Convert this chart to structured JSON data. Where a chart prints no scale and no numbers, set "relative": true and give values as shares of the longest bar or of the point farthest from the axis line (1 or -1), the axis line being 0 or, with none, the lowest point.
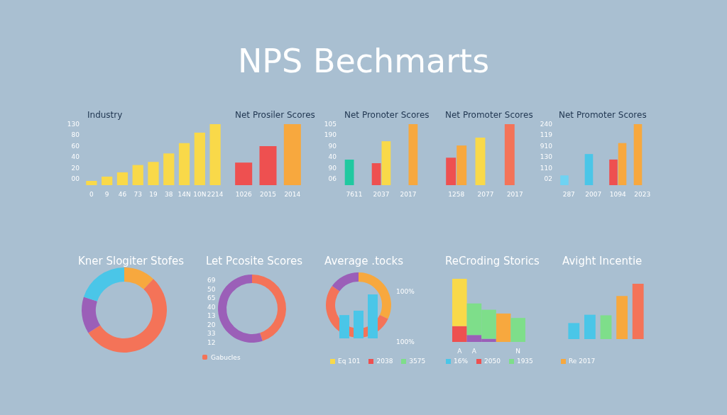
{
  "chart_data": [
    {
      "type": "other",
      "title": "NPS Bechmarts"
    },
    {
      "type": "bar",
      "title": "Industry",
      "relative": true,
      "categories": [
        "0",
        "9",
        "46",
        "73",
        "19",
        "38",
        "14N",
        "10N",
        "2214"
      ],
      "values": [
        0.07,
        0.14,
        0.21,
        0.33,
        0.38,
        0.52,
        0.69,
        0.86,
        1
      ],
      "color": "#f9d949",
      "annotations": [
        "130",
        "80",
        "60",
        "40",
        "20",
        "00"
      ]
    },
    {
      "type": "bar",
      "title": "Net Prosiler Scores",
      "relative": true,
      "categories": [
        "1026",
        "2015",
        "2014"
      ],
      "values": [
        0.37,
        0.64,
        1
      ],
      "colors": [
        "#ee5050",
        "#ee5050",
        "#f7a83e"
      ]
    },
    {
      "type": "bar",
      "title": "Net Pronoter Scores",
      "relative": true,
      "categories": [
        "7611",
        "2037",
        "2017"
      ],
      "series": [
        {
          "colors": [
            "#20c9a0",
            "#ee5050",
            null
          ],
          "values": [
            0.42,
            0.36,
            null
          ]
        },
        {
          "colors": [
            null,
            "#f9d949",
            "#f7a83e"
          ],
          "values": [
            null,
            0.72,
            1
          ]
        }
      ],
      "annotations": [
        "105",
        "190",
        "90",
        "40",
        "90",
        "06"
      ]
    },
    {
      "type": "bar",
      "title": "Net Promoter Scores",
      "relative": true,
      "categories": [
        "1258",
        "2077",
        "2017"
      ],
      "series": [
        {
          "colors": [
            "#ee5050",
            "#f9d949",
            "#f47358"
          ],
          "values": [
            0.45,
            0.78,
            1
          ]
        },
        {
          "colors": [
            "#f7a83e",
            null,
            null
          ],
          "values": [
            0.65,
            null,
            null
          ]
        }
      ]
    },
    {
      "type": "bar",
      "title": "Net Promoter Scores",
      "relative": true,
      "categories": [
        "287",
        "2007",
        "1094",
        "2023"
      ],
      "series": [
        {
          "colors": [
            "#6fd3f2",
            "#4ac6e8",
            "#ee5050",
            "#f7a83e"
          ],
          "values": [
            0.16,
            0.51,
            0.42,
            1
          ]
        },
        {
          "colors": [
            null,
            null,
            "#f7a83e",
            null
          ],
          "values": [
            null,
            null,
            0.69,
            null
          ]
        }
      ],
      "annotations": [
        "240",
        "119",
        "910",
        "130",
        "110",
        "02"
      ]
    },
    {
      "type": "donut",
      "title": "Kner Slogiter Stofes",
      "categories": [
        null,
        null,
        null,
        null
      ],
      "values": [
        12,
        54,
        14,
        20
      ],
      "colors": [
        "#f7a83e",
        "#f47358",
        "#9b5fb8",
        "#4ac6e8"
      ]
    },
    {
      "type": "donut",
      "title": "Let Pcosite Scores",
      "categories": [
        "Gabucles",
        null
      ],
      "values": [
        45,
        55
      ],
      "colors": [
        "#f47358",
        "#9b5fb8"
      ],
      "legend": "bottom left",
      "annotations": [
        "69",
        "50",
        "65",
        "40",
        "13",
        "20",
        "33",
        "12"
      ]
    },
    {
      "type": "donut",
      "title": "Average .tocks",
      "categories": [
        null,
        null,
        null
      ],
      "values": [
        32,
        53,
        15
      ],
      "colors": [
        "#f7a83e",
        "#f47358",
        "#9b5fb8"
      ],
      "annotations": [
        "100%",
        "100%"
      ]
    },
    {
      "type": "bar",
      "relative": true,
      "categories": [
        null,
        null,
        null
      ],
      "values": [
        0.53,
        0.63,
        1
      ],
      "color": "#4ac6e8"
    },
    {
      "type": "other",
      "categories": [
        "Eq 101",
        "2038",
        "3575"
      ],
      "colors": [
        "#f9d949",
        "#ee5050",
        "#7ede8a"
      ]
    },
    {
      "type": "bar",
      "title": "ReCroding Storics",
      "relative": true,
      "stacked": true,
      "categories": [
        "A",
        "A",
        null,
        null,
        "N"
      ],
      "series": [
        {
          "colors": [
            "#ee5050",
            "#9b5fb8",
            "#9b5fb8",
            "#f7a83e",
            "#7ede8a"
          ],
          "values": [
            0.25,
            0.11,
            0.05,
            0.45,
            0.38
          ]
        },
        {
          "colors": [
            "#f9d949",
            "#7ede8a",
            "#7ede8a",
            null,
            null
          ],
          "values": [
            0.75,
            0.5,
            0.46,
            null,
            null
          ]
        }
      ]
    },
    {
      "type": "other",
      "categories": [
        "16%",
        "2050",
        "1935"
      ],
      "colors": [
        "#4ac6e8",
        "#ee5050",
        "#7ede8a"
      ]
    },
    {
      "type": "bar",
      "title": "Avight Incentie",
      "relative": true,
      "categories": [
        null,
        null,
        null,
        null,
        null
      ],
      "values": [
        0.29,
        0.44,
        0.43,
        0.78,
        1
      ],
      "colors": [
        "#4ac6e8",
        "#4ac6e8",
        "#7ede8a",
        "#f7a83e",
        "#f47358"
      ]
    },
    {
      "type": "other",
      "categories": [
        "Re 2017"
      ],
      "colors": [
        "#f7a83e"
      ]
    }
  ]
}
